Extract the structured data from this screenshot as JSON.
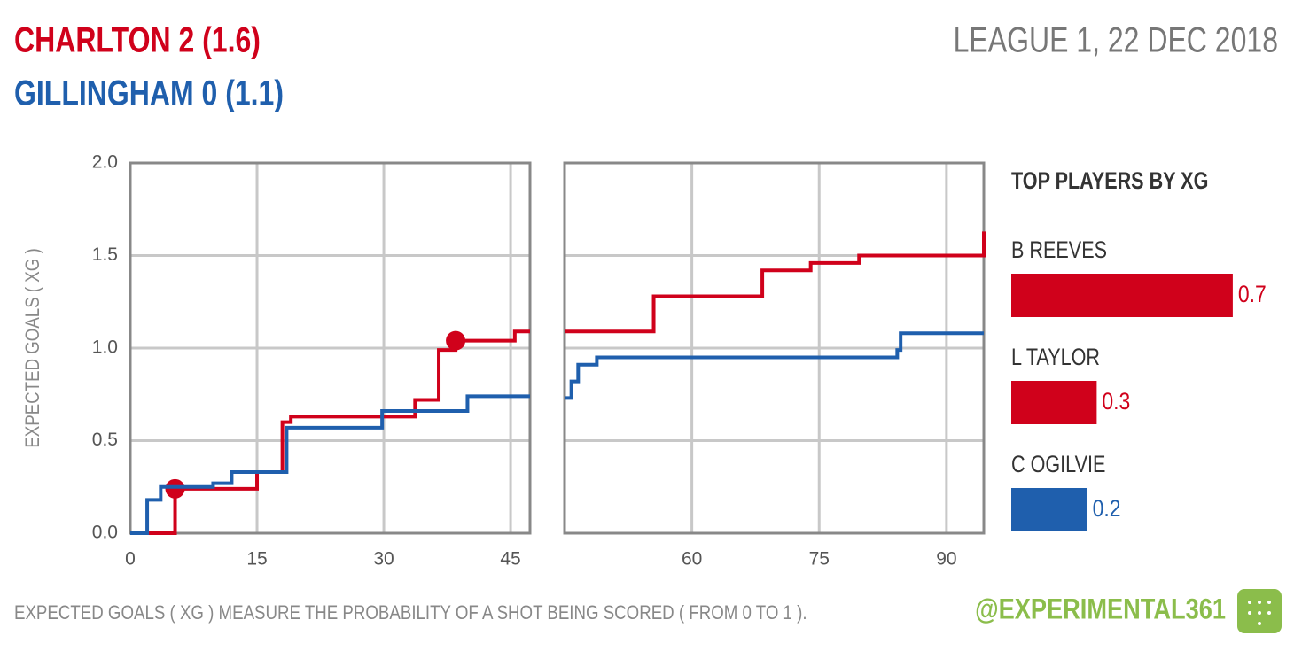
{
  "header": {
    "home": "CHARLTON 2 (1.6)",
    "away": "GILLINGHAM 0 (1.1)",
    "match": "LEAGUE 1, 22 DEC 2018"
  },
  "footer": {
    "note": "EXPECTED GOALS ( XG ) MEASURE THE PROBABILITY OF A SHOT BEING SCORED ( FROM 0 TO 1 ).",
    "handle": "@EXPERIMENTAL361"
  },
  "chart_data": [
    {
      "type": "step",
      "ylabel": "EXPECTED GOALS ( XG )",
      "xlim": [
        0,
        47.3
      ],
      "ylim": [
        0,
        2
      ],
      "xticks": [
        0,
        15,
        30,
        45
      ],
      "yticks": [
        {
          "value": 0,
          "label": "0.0"
        },
        0.5,
        {
          "value": 1,
          "label": "1.0"
        },
        1.5,
        {
          "value": 2,
          "label": "2.0"
        }
      ],
      "grid": true,
      "series": [
        {
          "name": "Charlton",
          "color": "#d0011b",
          "x": [
            0,
            5.3,
            15,
            18,
            19,
            33.7,
            36.5,
            38.5,
            45.5,
            47.3
          ],
          "values": [
            0,
            0.24,
            0.33,
            0.6,
            0.63,
            0.72,
            0.99,
            1.04,
            1.09,
            1.09
          ],
          "goal_x": [
            5.3,
            38.5
          ],
          "goal_values": [
            0.24,
            1.04
          ]
        },
        {
          "name": "Gillingham",
          "color": "#1f5fad",
          "x": [
            0,
            2,
            3.6,
            9.8,
            12,
            18.5,
            29.8,
            39.9,
            47.3
          ],
          "values": [
            0,
            0.18,
            0.25,
            0.27,
            0.33,
            0.57,
            0.66,
            0.74,
            0.74
          ]
        }
      ]
    },
    {
      "type": "step",
      "xlim": [
        45,
        94.4
      ],
      "ylim": [
        0,
        2
      ],
      "xticks": [
        60,
        75,
        90
      ],
      "yticks": [
        0,
        0.5,
        1,
        1.5,
        2
      ],
      "grid": true,
      "series": [
        {
          "name": "Charlton",
          "color": "#d0011b",
          "x": [
            45,
            55.5,
            68.3,
            74,
            79.7,
            94.4
          ],
          "values": [
            1.09,
            1.28,
            1.42,
            1.46,
            1.5,
            1.63
          ]
        },
        {
          "name": "Gillingham",
          "color": "#1f5fad",
          "x": [
            45,
            45.8,
            46.6,
            48.8,
            84.2,
            84.6,
            94.4
          ],
          "values": [
            0.73,
            0.82,
            0.91,
            0.95,
            0.99,
            1.08,
            1.08
          ]
        }
      ]
    },
    {
      "type": "hbar",
      "title": "TOP PLAYERS BY XG",
      "categories": [
        "B REEVES",
        "L TAYLOR",
        "C OGILVIE"
      ],
      "values": [
        0.7,
        0.27,
        0.24
      ],
      "value_labels": [
        "0.7",
        "0.3",
        "0.2"
      ],
      "colors": [
        "#d0011b",
        "#d0011b",
        "#1f5fad"
      ]
    }
  ]
}
